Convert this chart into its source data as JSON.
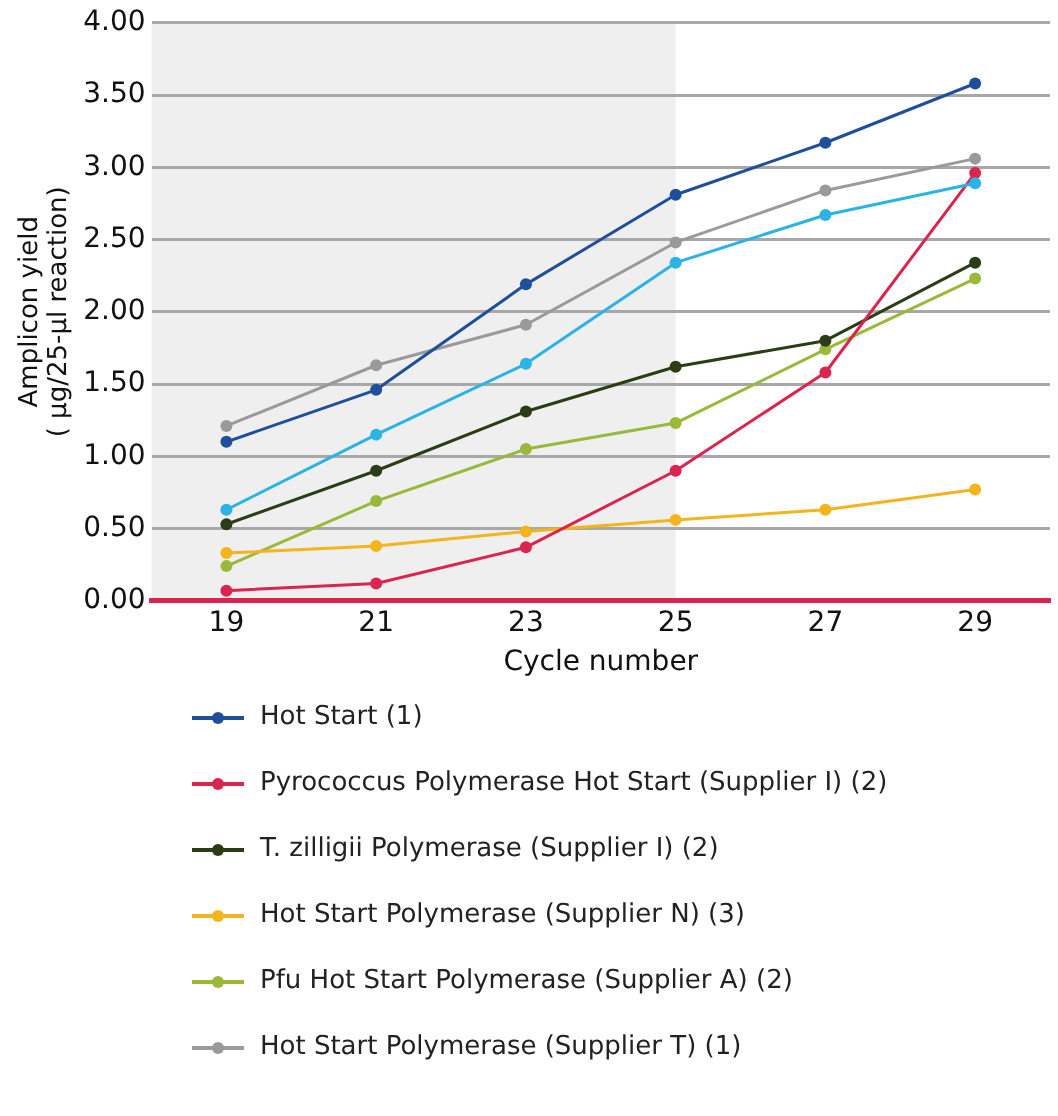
{
  "chart_data": {
    "type": "line",
    "xlabel": "Cycle number",
    "ylabel": "Amplicon yield\n( µg/25-µl reaction)",
    "x": [
      19,
      21,
      23,
      25,
      27,
      29
    ],
    "xlim": [
      18,
      30
    ],
    "xticks": [
      19,
      21,
      23,
      25,
      27,
      29
    ],
    "ylim": [
      0,
      4
    ],
    "yticks": [
      {
        "value": 0,
        "label": "0.00"
      },
      {
        "value": 0.5,
        "label": "0.50"
      },
      {
        "value": 1,
        "label": "1.00"
      },
      {
        "value": 1.5,
        "label": "1.50"
      },
      {
        "value": 2,
        "label": "2.00"
      },
      {
        "value": 2.5,
        "label": "2.50"
      },
      {
        "value": 3,
        "label": "3.00"
      },
      {
        "value": 3.5,
        "label": "3.50"
      },
      {
        "value": 4,
        "label": "4.00"
      }
    ],
    "grid": "y",
    "legend": "bottom",
    "marker": "circle",
    "line_style": "solid",
    "bands": [
      {
        "axis": "x",
        "from": 18,
        "to": 25,
        "color": "#efefef"
      }
    ],
    "series": [
      {
        "name": "Hot Start (1)",
        "color": "#1f4e9c",
        "values": [
          1.1,
          1.46,
          2.19,
          2.81,
          3.17,
          3.58
        ]
      },
      {
        "color": "#2bb3e6",
        "values": [
          0.63,
          1.15,
          1.64,
          2.34,
          2.67,
          2.89
        ]
      },
      {
        "name": "Pyrococcus Polymerase Hot Start (Supplier I) (2)",
        "color": "#d9254f",
        "values": [
          0.07,
          0.12,
          0.37,
          0.9,
          1.58,
          2.96
        ]
      },
      {
        "name": "T. zilligii Polymerase (Supplier I) (2)",
        "color": "#2a3d14",
        "values": [
          0.53,
          0.9,
          1.31,
          1.62,
          1.8,
          2.34
        ]
      },
      {
        "name": "Hot Start Polymerase (Supplier N) (3)",
        "color": "#f4b41c",
        "values": [
          0.33,
          0.38,
          0.48,
          0.56,
          0.63,
          0.77
        ]
      },
      {
        "name": "Pfu Hot Start Polymerase (Supplier A) (2)",
        "color": "#9ab83a",
        "values": [
          0.24,
          0.69,
          1.05,
          1.23,
          1.74,
          2.23
        ]
      },
      {
        "name": "Hot Start Polymerase (Supplier T) (1)",
        "color": "#9a9a9a",
        "values": [
          1.21,
          1.63,
          1.91,
          2.48,
          2.84,
          3.06
        ]
      }
    ]
  }
}
